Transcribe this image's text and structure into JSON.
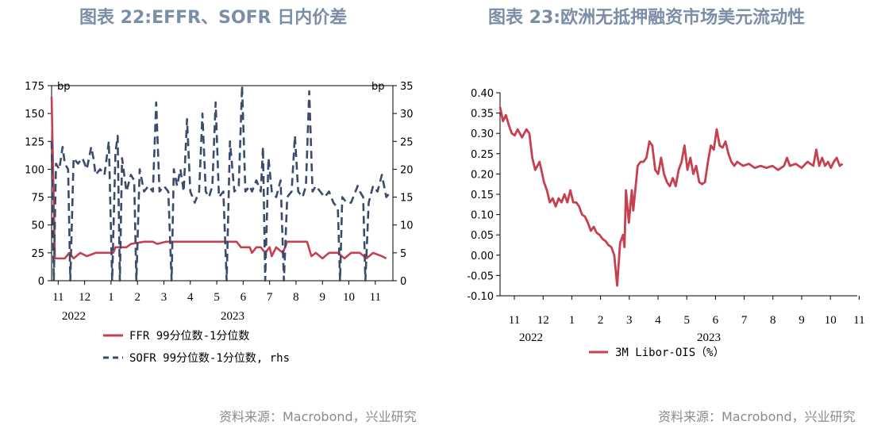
{
  "chart_data": [
    {
      "type": "line",
      "title": "图表 22:EFFR、SOFR 日内价差",
      "source": "资料来源：Macrobond，兴业研究",
      "left_unit": "bp",
      "right_unit": "bp",
      "ylim_left": [
        0,
        175
      ],
      "ylim_right": [
        0,
        35
      ],
      "yticks_left": [
        "0",
        "25",
        "50",
        "75",
        "100",
        "125",
        "150",
        "175"
      ],
      "yticks_right": [
        "0",
        "5",
        "10",
        "15",
        "20",
        "25",
        "30",
        "35"
      ],
      "xticks": [
        "11",
        "12",
        "1",
        "2",
        "3",
        "4",
        "5",
        "6",
        "7",
        "8",
        "9",
        "10",
        "11"
      ],
      "years": [
        "2022",
        "2023"
      ],
      "series": [
        {
          "name": "FFR 99分位数-1分位数",
          "axis": "left",
          "color": "#c6404f",
          "points": [
            [
              0,
              165
            ],
            [
              0.15,
              20
            ],
            [
              0.6,
              20
            ],
            [
              0.8,
              25
            ],
            [
              1.0,
              20
            ],
            [
              1.3,
              25
            ],
            [
              1.6,
              22
            ],
            [
              2.0,
              25
            ],
            [
              2.4,
              25
            ],
            [
              2.8,
              25
            ],
            [
              2.9,
              30
            ],
            [
              3.4,
              30
            ],
            [
              3.6,
              33
            ],
            [
              4.2,
              35
            ],
            [
              4.6,
              35
            ],
            [
              4.8,
              33
            ],
            [
              5.2,
              35
            ],
            [
              5.8,
              35
            ],
            [
              6.3,
              35
            ],
            [
              6.8,
              35
            ],
            [
              7.2,
              35
            ],
            [
              7.6,
              35
            ],
            [
              8.0,
              35
            ],
            [
              8.4,
              35
            ],
            [
              8.6,
              30
            ],
            [
              9.0,
              30
            ],
            [
              9.1,
              25
            ],
            [
              9.3,
              30
            ],
            [
              9.5,
              30
            ],
            [
              9.7,
              25
            ],
            [
              9.9,
              30
            ],
            [
              10.0,
              22
            ],
            [
              10.2,
              30
            ],
            [
              10.5,
              25
            ],
            [
              10.7,
              35
            ],
            [
              11.0,
              35
            ],
            [
              11.4,
              35
            ],
            [
              11.6,
              35
            ],
            [
              11.8,
              22
            ],
            [
              12.0,
              25
            ],
            [
              12.3,
              20
            ],
            [
              12.6,
              25
            ],
            [
              13.0,
              25
            ],
            [
              13.3,
              20
            ],
            [
              13.6,
              25
            ],
            [
              14.0,
              25
            ],
            [
              14.3,
              20
            ],
            [
              14.6,
              25
            ],
            [
              15.0,
              22
            ],
            [
              15.2,
              20
            ]
          ]
        },
        {
          "name": "SOFR 99分位数-1分位数, rhs",
          "axis": "right",
          "color": "#3a4b6b",
          "points": [
            [
              0,
              25
            ],
            [
              0.1,
              0
            ],
            [
              0.2,
              21
            ],
            [
              0.35,
              20
            ],
            [
              0.5,
              24
            ],
            [
              0.6,
              21
            ],
            [
              0.75,
              20
            ],
            [
              0.85,
              0
            ],
            [
              1.0,
              22
            ],
            [
              1.2,
              21
            ],
            [
              1.4,
              22
            ],
            [
              1.6,
              20
            ],
            [
              1.8,
              24
            ],
            [
              1.9,
              22
            ],
            [
              2.0,
              19
            ],
            [
              2.2,
              20
            ],
            [
              2.4,
              19
            ],
            [
              2.6,
              25
            ],
            [
              2.75,
              0
            ],
            [
              2.9,
              23
            ],
            [
              3.0,
              26
            ],
            [
              3.1,
              0
            ],
            [
              3.2,
              22
            ],
            [
              3.4,
              16
            ],
            [
              3.6,
              19
            ],
            [
              3.75,
              18
            ],
            [
              3.85,
              0
            ],
            [
              4.0,
              20
            ],
            [
              4.2,
              16
            ],
            [
              4.4,
              17
            ],
            [
              4.6,
              16
            ],
            [
              4.75,
              32
            ],
            [
              4.9,
              16
            ],
            [
              5.1,
              17
            ],
            [
              5.3,
              16
            ],
            [
              5.45,
              0
            ],
            [
              5.55,
              20
            ],
            [
              5.7,
              17
            ],
            [
              5.85,
              20
            ],
            [
              6.0,
              16
            ],
            [
              6.15,
              29
            ],
            [
              6.3,
              16
            ],
            [
              6.5,
              14
            ],
            [
              6.7,
              16
            ],
            [
              6.85,
              30
            ],
            [
              7.0,
              16
            ],
            [
              7.15,
              15
            ],
            [
              7.3,
              17
            ],
            [
              7.45,
              32
            ],
            [
              7.6,
              15
            ],
            [
              7.8,
              16
            ],
            [
              7.95,
              0
            ],
            [
              8.1,
              25
            ],
            [
              8.3,
              16
            ],
            [
              8.5,
              17
            ],
            [
              8.65,
              35
            ],
            [
              8.8,
              16
            ],
            [
              9.0,
              17
            ],
            [
              9.1,
              16
            ],
            [
              9.3,
              18
            ],
            [
              9.5,
              16
            ],
            [
              9.6,
              24
            ],
            [
              9.7,
              0
            ],
            [
              9.85,
              22
            ],
            [
              10.0,
              16
            ],
            [
              10.2,
              15
            ],
            [
              10.4,
              18
            ],
            [
              10.55,
              0
            ],
            [
              10.7,
              15
            ],
            [
              10.9,
              16
            ],
            [
              11.05,
              26
            ],
            [
              11.2,
              16
            ],
            [
              11.4,
              15
            ],
            [
              11.55,
              17
            ],
            [
              11.7,
              34
            ],
            [
              11.85,
              16
            ],
            [
              12.0,
              17
            ],
            [
              12.2,
              16
            ],
            [
              12.4,
              15
            ],
            [
              12.6,
              16
            ],
            [
              12.8,
              14
            ],
            [
              13.0,
              13
            ],
            [
              13.1,
              0
            ],
            [
              13.2,
              15
            ],
            [
              13.4,
              14
            ],
            [
              13.6,
              14
            ],
            [
              13.8,
              16
            ],
            [
              13.9,
              17
            ],
            [
              14.0,
              16
            ],
            [
              14.15,
              15
            ],
            [
              14.25,
              0
            ],
            [
              14.4,
              14
            ],
            [
              14.6,
              17
            ],
            [
              14.8,
              16
            ],
            [
              15.0,
              19
            ],
            [
              15.2,
              15
            ],
            [
              15.4,
              16
            ]
          ]
        }
      ]
    },
    {
      "type": "line",
      "title": "图表 23:欧洲无抵押融资市场美元流动性",
      "source": "资料来源：Macrobond，兴业研究",
      "ylim": [
        -0.1,
        0.4
      ],
      "yticks": [
        "0.40",
        "0.35",
        "0.30",
        "0.25",
        "0.20",
        "0.15",
        "0.10",
        "0.05",
        "0.00",
        "-0.05",
        "-0.10"
      ],
      "xticks": [
        "11",
        "12",
        "1",
        "2",
        "3",
        "4",
        "5",
        "6",
        "7",
        "8",
        "9",
        "10",
        "11"
      ],
      "years": [
        "2022",
        "2023"
      ],
      "series": [
        {
          "name": "3M Libor-OIS（%）",
          "color": "#c6404f",
          "points": [
            [
              0,
              0.365
            ],
            [
              0.1,
              0.33
            ],
            [
              0.2,
              0.345
            ],
            [
              0.3,
              0.32
            ],
            [
              0.4,
              0.3
            ],
            [
              0.5,
              0.295
            ],
            [
              0.6,
              0.31
            ],
            [
              0.75,
              0.29
            ],
            [
              0.9,
              0.31
            ],
            [
              1.0,
              0.3
            ],
            [
              1.1,
              0.24
            ],
            [
              1.2,
              0.21
            ],
            [
              1.35,
              0.23
            ],
            [
              1.5,
              0.18
            ],
            [
              1.6,
              0.16
            ],
            [
              1.7,
              0.13
            ],
            [
              1.8,
              0.14
            ],
            [
              1.9,
              0.12
            ],
            [
              2.0,
              0.14
            ],
            [
              2.1,
              0.13
            ],
            [
              2.2,
              0.15
            ],
            [
              2.3,
              0.13
            ],
            [
              2.4,
              0.16
            ],
            [
              2.5,
              0.13
            ],
            [
              2.6,
              0.13
            ],
            [
              2.7,
              0.12
            ],
            [
              2.8,
              0.1
            ],
            [
              2.9,
              0.095
            ],
            [
              3.0,
              0.08
            ],
            [
              3.1,
              0.06
            ],
            [
              3.2,
              0.07
            ],
            [
              3.3,
              0.055
            ],
            [
              3.4,
              0.05
            ],
            [
              3.5,
              0.04
            ],
            [
              3.6,
              0.035
            ],
            [
              3.7,
              0.025
            ],
            [
              3.8,
              0.02
            ],
            [
              3.9,
              0.0
            ],
            [
              4.0,
              -0.075
            ],
            [
              4.1,
              0.03
            ],
            [
              4.2,
              0.05
            ],
            [
              4.25,
              0.02
            ],
            [
              4.3,
              0.16
            ],
            [
              4.4,
              0.08
            ],
            [
              4.5,
              0.16
            ],
            [
              4.55,
              0.11
            ],
            [
              4.7,
              0.22
            ],
            [
              4.8,
              0.23
            ],
            [
              4.9,
              0.23
            ],
            [
              5.0,
              0.24
            ],
            [
              5.1,
              0.28
            ],
            [
              5.2,
              0.27
            ],
            [
              5.3,
              0.21
            ],
            [
              5.4,
              0.2
            ],
            [
              5.5,
              0.24
            ],
            [
              5.6,
              0.2
            ],
            [
              5.7,
              0.18
            ],
            [
              5.8,
              0.17
            ],
            [
              5.9,
              0.19
            ],
            [
              6.0,
              0.17
            ],
            [
              6.1,
              0.21
            ],
            [
              6.2,
              0.23
            ],
            [
              6.3,
              0.27
            ],
            [
              6.4,
              0.21
            ],
            [
              6.5,
              0.24
            ],
            [
              6.6,
              0.2
            ],
            [
              6.7,
              0.22
            ],
            [
              6.8,
              0.18
            ],
            [
              6.9,
              0.175
            ],
            [
              7.0,
              0.18
            ],
            [
              7.1,
              0.23
            ],
            [
              7.2,
              0.27
            ],
            [
              7.3,
              0.26
            ],
            [
              7.4,
              0.31
            ],
            [
              7.5,
              0.27
            ],
            [
              7.6,
              0.265
            ],
            [
              7.7,
              0.28
            ],
            [
              7.8,
              0.25
            ],
            [
              7.9,
              0.23
            ],
            [
              8.0,
              0.22
            ],
            [
              8.1,
              0.23
            ],
            [
              8.3,
              0.22
            ],
            [
              8.5,
              0.225
            ],
            [
              8.7,
              0.215
            ],
            [
              8.9,
              0.22
            ],
            [
              9.1,
              0.215
            ],
            [
              9.3,
              0.22
            ],
            [
              9.5,
              0.21
            ],
            [
              9.7,
              0.22
            ],
            [
              9.8,
              0.24
            ],
            [
              9.9,
              0.22
            ],
            [
              10.1,
              0.225
            ],
            [
              10.3,
              0.215
            ],
            [
              10.5,
              0.23
            ],
            [
              10.7,
              0.22
            ],
            [
              10.8,
              0.26
            ],
            [
              10.9,
              0.22
            ],
            [
              11.0,
              0.24
            ],
            [
              11.1,
              0.22
            ],
            [
              11.2,
              0.23
            ],
            [
              11.3,
              0.215
            ],
            [
              11.4,
              0.23
            ],
            [
              11.5,
              0.24
            ],
            [
              11.6,
              0.22
            ],
            [
              11.7,
              0.225
            ]
          ]
        }
      ]
    }
  ]
}
